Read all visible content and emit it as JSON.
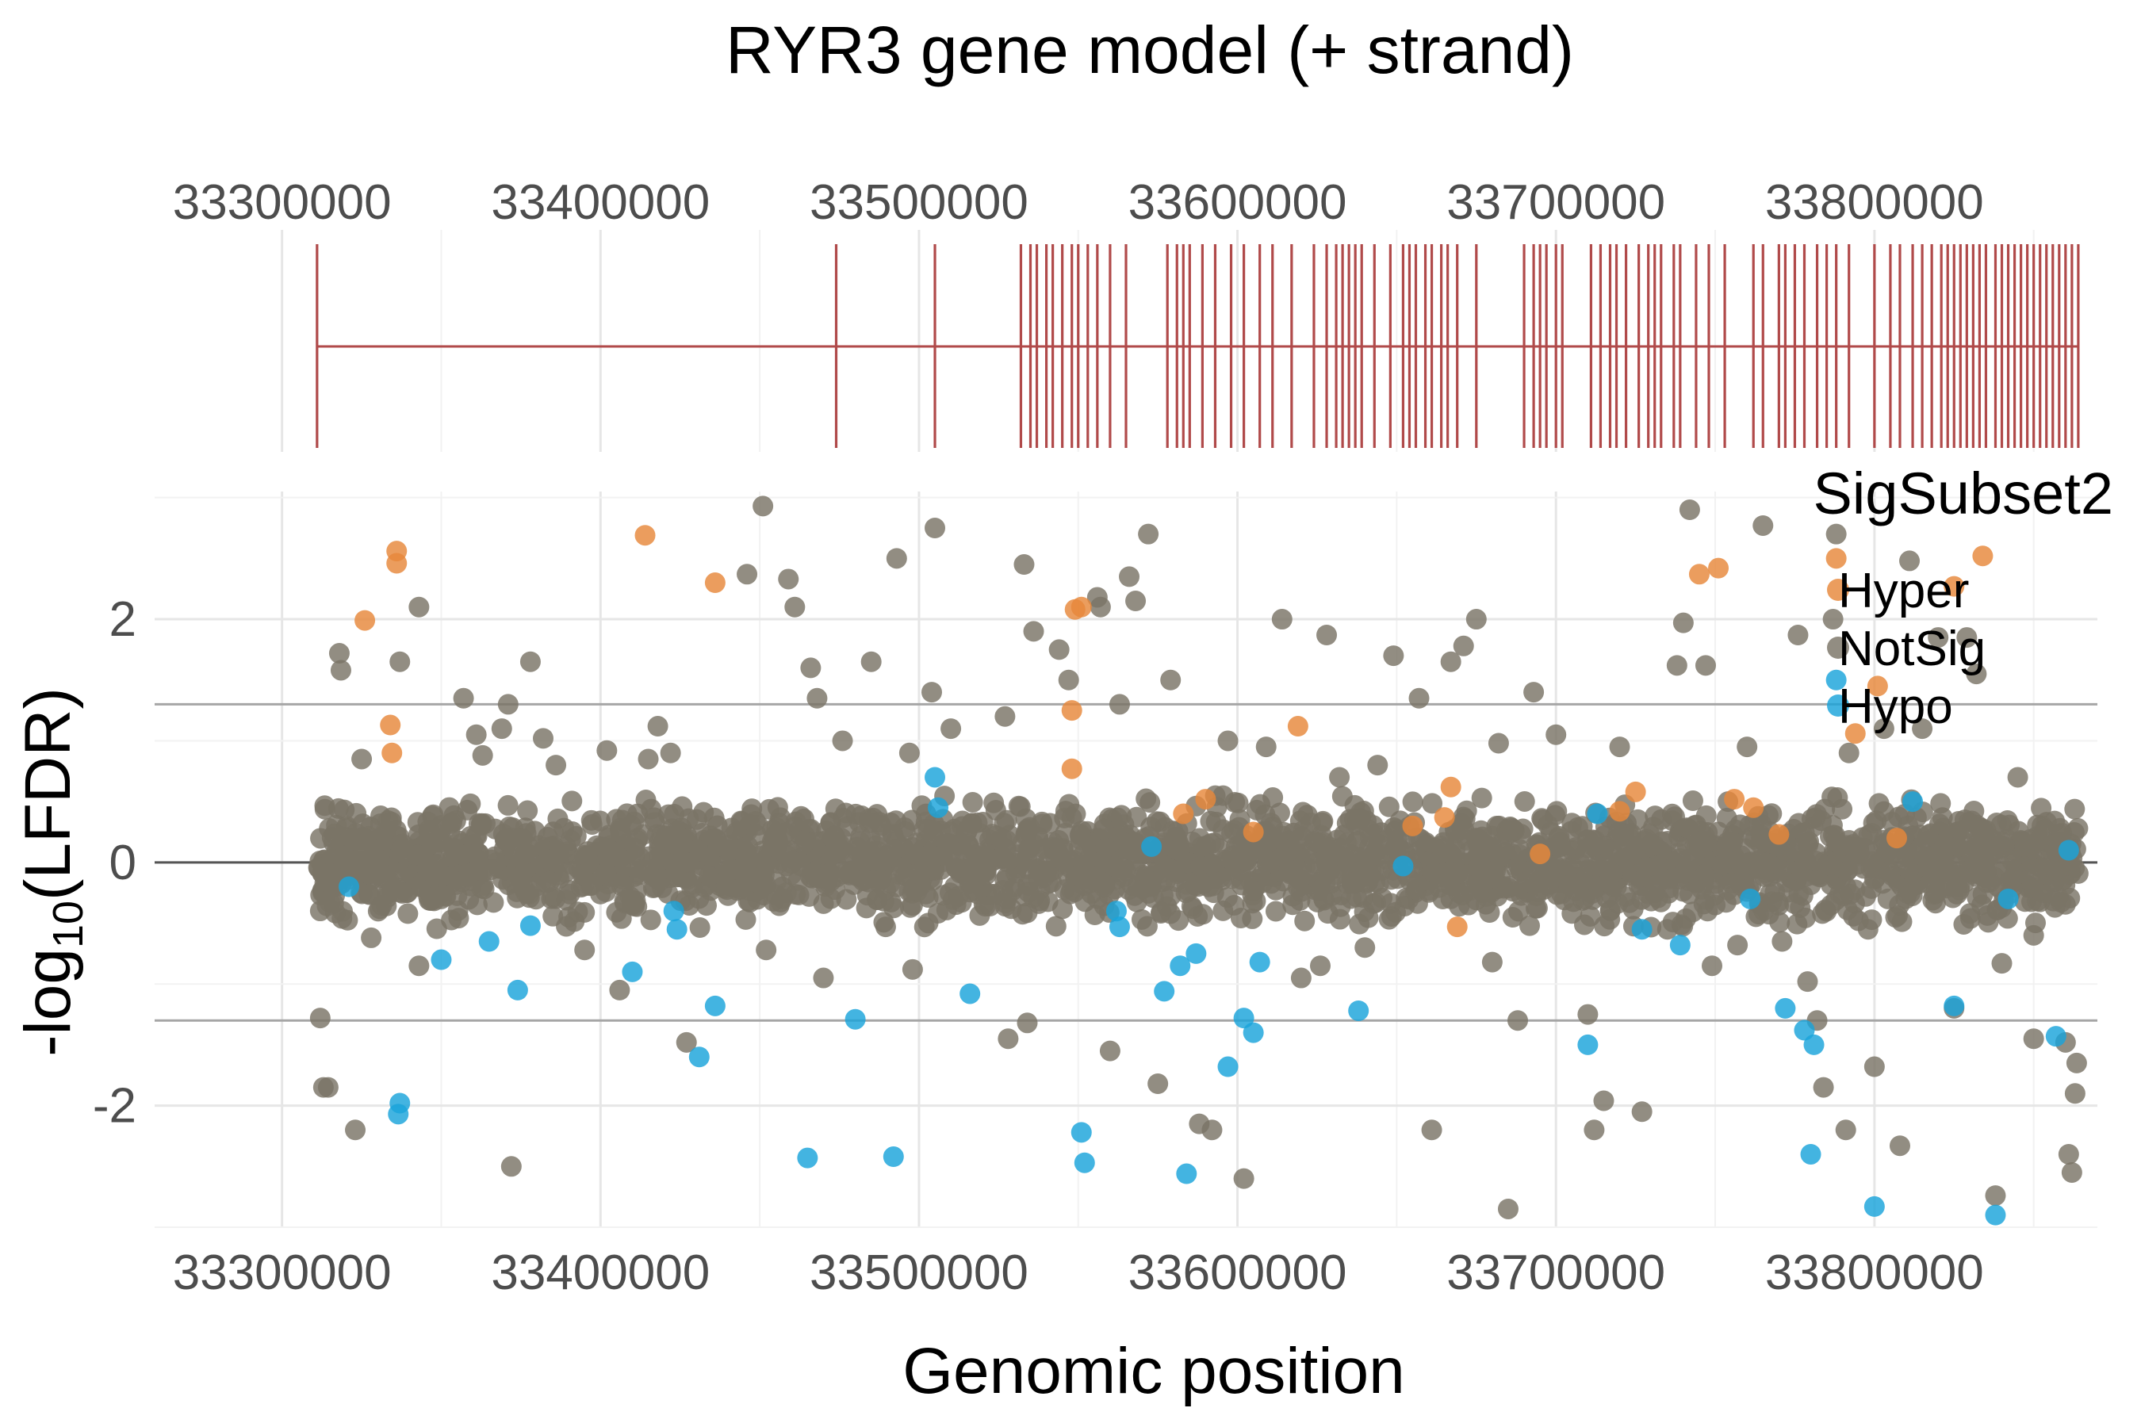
{
  "chart_data": [
    {
      "type": "gene_model",
      "title": "RYR3 gene model (+ strand)",
      "x_ticks": [
        33300000,
        33400000,
        33500000,
        33600000,
        33700000,
        33800000
      ],
      "x_tick_labels": [
        "33300000",
        "33400000",
        "33500000",
        "33600000",
        "33700000",
        "33800000"
      ],
      "xlim": [
        33260000,
        33870000
      ],
      "gene_start": 33311000,
      "gene_end": 33864000,
      "color": "#b04a4a",
      "exons": [
        33311000,
        33474000,
        33505000,
        33532000,
        33535000,
        33537000,
        33540000,
        33542000,
        33545000,
        33548000,
        33550000,
        33553000,
        33556000,
        33560000,
        33565000,
        33578000,
        33581000,
        33583000,
        33585000,
        33589000,
        33593000,
        33598000,
        33602000,
        33607000,
        33611000,
        33617000,
        33624000,
        33628000,
        33631000,
        33633000,
        33635000,
        33637000,
        33639000,
        33643000,
        33648000,
        33652000,
        33654000,
        33656000,
        33659000,
        33661000,
        33664000,
        33666000,
        33669000,
        33675000,
        33690000,
        33693000,
        33695000,
        33697000,
        33700000,
        33702000,
        33711000,
        33714000,
        33717000,
        33719000,
        33722000,
        33726000,
        33729000,
        33731000,
        33733000,
        33737000,
        33739000,
        33744000,
        33748000,
        33753000,
        33762000,
        33765000,
        33770000,
        33772000,
        33775000,
        33778000,
        33782000,
        33785000,
        33788000,
        33792000,
        33800000,
        33805000,
        33808000,
        33812000,
        33815000,
        33818000,
        33821000,
        33823000,
        33825000,
        33827000,
        33829000,
        33831000,
        33833000,
        33835000,
        33838000,
        33840000,
        33842000,
        33844000,
        33846000,
        33848000,
        33850000,
        33852000,
        33854000,
        33856000,
        33858000,
        33860000,
        33862000,
        33864000
      ]
    },
    {
      "type": "scatter",
      "xlabel": "Genomic position",
      "ylabel": "-log10(LFDR)",
      "ylabel_base": "-log",
      "ylabel_sub": "10",
      "ylabel_rest": "(LFDR)",
      "xlim": [
        33260000,
        33870000
      ],
      "ylim": [
        -3.0,
        3.05
      ],
      "x_ticks": [
        33300000,
        33400000,
        33500000,
        33600000,
        33700000,
        33800000
      ],
      "x_tick_labels": [
        "33300000",
        "33400000",
        "33500000",
        "33600000",
        "33700000",
        "33800000"
      ],
      "y_ticks": [
        -2,
        0,
        2
      ],
      "y_tick_labels": [
        "-2",
        "0",
        "2"
      ],
      "hlines": [
        1.3,
        0,
        -1.3
      ],
      "grid": true,
      "legend": {
        "title": "SigSubset2",
        "position": "top-right",
        "entries": [
          "Hyper",
          "NotSig",
          "Hypo"
        ]
      },
      "colors": {
        "Hyper": "#e6883a",
        "NotSig": "#7a7466",
        "Hypo": "#1aa3db"
      },
      "point_opacity": 0.82,
      "bulk_band": {
        "x_range": [
          33311000,
          33864000
        ],
        "y_range": [
          -0.55,
          0.55
        ],
        "count": 2600,
        "series": "NotSig"
      },
      "series": [
        {
          "name": "Hyper",
          "points": [
            [
              33336000,
              2.56
            ],
            [
              33336000,
              2.46
            ],
            [
              33326000,
              1.99
            ],
            [
              33334000,
              1.13
            ],
            [
              33334500,
              0.9
            ],
            [
              33414000,
              2.69
            ],
            [
              33436000,
              2.3
            ],
            [
              33551000,
              2.1
            ],
            [
              33549000,
              2.08
            ],
            [
              33548000,
              1.25
            ],
            [
              33548000,
              0.77
            ],
            [
              33590000,
              0.52
            ],
            [
              33619000,
              1.12
            ],
            [
              33695000,
              0.07
            ],
            [
              33720000,
              0.42
            ],
            [
              33745000,
              2.37
            ],
            [
              33751000,
              2.42
            ],
            [
              33756000,
              0.52
            ],
            [
              33770000,
              0.23
            ],
            [
              33788000,
              2.5
            ],
            [
              33794000,
              1.06
            ],
            [
              33801000,
              1.45
            ],
            [
              33807000,
              0.2
            ],
            [
              33825000,
              2.27
            ],
            [
              33834000,
              2.52
            ],
            [
              33667000,
              0.62
            ],
            [
              33665000,
              0.37
            ],
            [
              33669000,
              -0.53
            ],
            [
              33655000,
              0.3
            ],
            [
              33583000,
              0.4
            ],
            [
              33605000,
              0.25
            ],
            [
              33725000,
              0.58
            ],
            [
              33762000,
              0.45
            ]
          ]
        },
        {
          "name": "Hypo",
          "points": [
            [
              33337000,
              -1.98
            ],
            [
              33336500,
              -2.07
            ],
            [
              33321000,
              -0.2
            ],
            [
              33350000,
              -0.8
            ],
            [
              33365000,
              -0.65
            ],
            [
              33374000,
              -1.05
            ],
            [
              33378000,
              -0.52
            ],
            [
              33410000,
              -0.9
            ],
            [
              33423000,
              -0.4
            ],
            [
              33424000,
              -0.55
            ],
            [
              33431000,
              -1.6
            ],
            [
              33436000,
              -1.18
            ],
            [
              33465000,
              -2.43
            ],
            [
              33480000,
              -1.29
            ],
            [
              33492000,
              -2.42
            ],
            [
              33505000,
              0.7
            ],
            [
              33506000,
              0.45
            ],
            [
              33516000,
              -1.08
            ],
            [
              33551000,
              -2.22
            ],
            [
              33552000,
              -2.47
            ],
            [
              33562000,
              -0.4
            ],
            [
              33563000,
              -0.53
            ],
            [
              33573000,
              0.13
            ],
            [
              33577000,
              -1.06
            ],
            [
              33582000,
              -0.85
            ],
            [
              33584000,
              -2.56
            ],
            [
              33587000,
              -0.75
            ],
            [
              33597000,
              -1.68
            ],
            [
              33602000,
              -1.28
            ],
            [
              33605000,
              -1.4
            ],
            [
              33607000,
              -0.82
            ],
            [
              33638000,
              -1.22
            ],
            [
              33652000,
              -0.03
            ],
            [
              33710000,
              -1.5
            ],
            [
              33713000,
              0.4
            ],
            [
              33727000,
              -0.55
            ],
            [
              33739000,
              -0.68
            ],
            [
              33761000,
              -0.3
            ],
            [
              33772000,
              -1.2
            ],
            [
              33778000,
              -1.38
            ],
            [
              33781000,
              -1.5
            ],
            [
              33780000,
              -2.4
            ],
            [
              33788000,
              1.5
            ],
            [
              33800000,
              -2.83
            ],
            [
              33812000,
              0.5
            ],
            [
              33825000,
              -1.18
            ],
            [
              33838000,
              -2.9
            ],
            [
              33842000,
              -0.3
            ],
            [
              33857000,
              -1.43
            ],
            [
              33861000,
              0.1
            ]
          ]
        },
        {
          "name": "NotSig",
          "points": [
            [
              33312000,
              -1.28
            ],
            [
              33313000,
              -1.85
            ],
            [
              33314500,
              -1.85
            ],
            [
              33318000,
              1.72
            ],
            [
              33318500,
              1.58
            ],
            [
              33323000,
              -2.2
            ],
            [
              33325000,
              0.85
            ],
            [
              33337000,
              1.65
            ],
            [
              33343000,
              2.1
            ],
            [
              33357000,
              1.35
            ],
            [
              33361000,
              1.05
            ],
            [
              33363000,
              0.88
            ],
            [
              33369000,
              1.1
            ],
            [
              33371000,
              1.3
            ],
            [
              33372000,
              -2.5
            ],
            [
              33378000,
              1.65
            ],
            [
              33382000,
              1.02
            ],
            [
              33386000,
              0.8
            ],
            [
              33395000,
              -0.72
            ],
            [
              33402000,
              0.92
            ],
            [
              33406000,
              -1.05
            ],
            [
              33415000,
              0.85
            ],
            [
              33418000,
              1.12
            ],
            [
              33422000,
              0.9
            ],
            [
              33427000,
              -1.48
            ],
            [
              33446000,
              2.37
            ],
            [
              33451000,
              2.93
            ],
            [
              33459000,
              2.33
            ],
            [
              33461000,
              2.1
            ],
            [
              33466000,
              1.6
            ],
            [
              33468000,
              1.35
            ],
            [
              33476000,
              1.0
            ],
            [
              33485000,
              1.65
            ],
            [
              33493000,
              2.5
            ],
            [
              33497000,
              0.9
            ],
            [
              33504000,
              1.4
            ],
            [
              33505000,
              2.75
            ],
            [
              33510000,
              1.1
            ],
            [
              33527000,
              1.2
            ],
            [
              33533000,
              2.45
            ],
            [
              33536000,
              1.9
            ],
            [
              33544000,
              1.75
            ],
            [
              33547000,
              1.5
            ],
            [
              33556000,
              2.18
            ],
            [
              33557000,
              2.1
            ],
            [
              33563000,
              1.3
            ],
            [
              33566000,
              2.35
            ],
            [
              33568000,
              2.15
            ],
            [
              33572000,
              2.7
            ],
            [
              33579000,
              1.5
            ],
            [
              33586000,
              -0.38
            ],
            [
              33588000,
              -2.15
            ],
            [
              33592000,
              -2.2
            ],
            [
              33597000,
              1.0
            ],
            [
              33602000,
              -2.6
            ],
            [
              33609000,
              0.95
            ],
            [
              33614000,
              2.0
            ],
            [
              33626000,
              -0.85
            ],
            [
              33628000,
              1.87
            ],
            [
              33632000,
              0.7
            ],
            [
              33644000,
              0.8
            ],
            [
              33649000,
              1.7
            ],
            [
              33657000,
              1.35
            ],
            [
              33661000,
              -2.2
            ],
            [
              33667000,
              1.65
            ],
            [
              33671000,
              1.78
            ],
            [
              33675000,
              2.0
            ],
            [
              33682000,
              0.98
            ],
            [
              33685000,
              -2.85
            ],
            [
              33688000,
              -1.3
            ],
            [
              33693000,
              1.4
            ],
            [
              33700000,
              1.05
            ],
            [
              33710000,
              -1.25
            ],
            [
              33712000,
              -2.2
            ],
            [
              33715000,
              -1.96
            ],
            [
              33720000,
              0.95
            ],
            [
              33727000,
              -2.05
            ],
            [
              33738000,
              1.62
            ],
            [
              33740000,
              1.97
            ],
            [
              33742000,
              2.9
            ],
            [
              33747000,
              1.62
            ],
            [
              33749000,
              -0.85
            ],
            [
              33754000,
              0.5
            ],
            [
              33760000,
              0.95
            ],
            [
              33765000,
              2.77
            ],
            [
              33771000,
              -0.65
            ],
            [
              33776000,
              1.87
            ],
            [
              33779000,
              -0.98
            ],
            [
              33782000,
              -1.3
            ],
            [
              33784000,
              -1.85
            ],
            [
              33787000,
              2.0
            ],
            [
              33788000,
              2.7
            ],
            [
              33791000,
              -2.2
            ],
            [
              33792000,
              0.9
            ],
            [
              33795000,
              -0.48
            ],
            [
              33800000,
              -1.68
            ],
            [
              33803000,
              1.1
            ],
            [
              33808000,
              -2.33
            ],
            [
              33811000,
              2.48
            ],
            [
              33815000,
              1.1
            ],
            [
              33820000,
              1.85
            ],
            [
              33825000,
              -1.2
            ],
            [
              33829000,
              1.85
            ],
            [
              33832000,
              1.55
            ],
            [
              33838000,
              -2.74
            ],
            [
              33840000,
              -0.83
            ],
            [
              33845000,
              0.7
            ],
            [
              33850000,
              -1.45
            ],
            [
              33855000,
              -0.25
            ],
            [
              33860000,
              -1.48
            ],
            [
              33861000,
              -2.4
            ],
            [
              33862000,
              -2.55
            ],
            [
              33863000,
              -1.9
            ],
            [
              33863500,
              -1.65
            ],
            [
              33328000,
              -0.62
            ],
            [
              33343000,
              -0.85
            ],
            [
              33350000,
              -0.3
            ],
            [
              33390000,
              -0.45
            ],
            [
              33452000,
              -0.72
            ],
            [
              33470000,
              -0.95
            ],
            [
              33498000,
              -0.88
            ],
            [
              33528000,
              -1.45
            ],
            [
              33534000,
              -1.32
            ],
            [
              33560000,
              -1.55
            ],
            [
              33575000,
              -1.82
            ],
            [
              33620000,
              -0.95
            ],
            [
              33640000,
              -0.7
            ],
            [
              33680000,
              -0.82
            ],
            [
              33705000,
              -0.42
            ],
            [
              33735000,
              -0.55
            ],
            [
              33757000,
              -0.68
            ],
            [
              33798000,
              -0.55
            ],
            [
              33830000,
              -0.42
            ],
            [
              33850000,
              -0.6
            ]
          ]
        }
      ]
    }
  ]
}
